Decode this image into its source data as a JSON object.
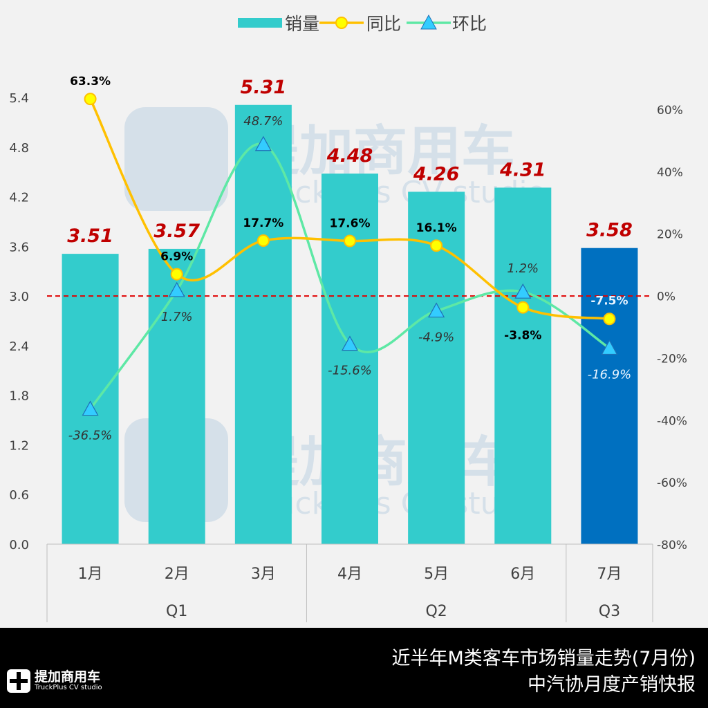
{
  "chart_data": {
    "type": "bar+line",
    "categories": [
      "1月",
      "2月",
      "3月",
      "4月",
      "5月",
      "6月",
      "7月"
    ],
    "groups": [
      {
        "label": "Q1",
        "span": 3
      },
      {
        "label": "Q2",
        "span": 3
      },
      {
        "label": "Q3",
        "span": 1
      }
    ],
    "series": [
      {
        "name": "销量",
        "type": "bar",
        "axis": "left",
        "values": [
          3.51,
          3.57,
          5.31,
          4.48,
          4.26,
          4.31,
          3.58
        ],
        "labels": [
          "3.51",
          "3.57",
          "5.31",
          "4.48",
          "4.26",
          "4.31",
          "3.58"
        ]
      },
      {
        "name": "同比",
        "type": "line",
        "axis": "right",
        "values": [
          63.3,
          6.9,
          17.7,
          17.6,
          16.1,
          -3.8,
          -7.5
        ],
        "labels": [
          "63.3%",
          "6.9%",
          "17.7%",
          "17.6%",
          "16.1%",
          "-3.8%",
          "-7.5%"
        ]
      },
      {
        "name": "环比",
        "type": "line",
        "axis": "right",
        "values": [
          -36.5,
          1.7,
          48.7,
          -15.6,
          -4.9,
          1.2,
          -16.9
        ],
        "labels": [
          "-36.5%",
          "1.7%",
          "48.7%",
          "-15.6%",
          "-4.9%",
          "1.2%",
          "-16.9%"
        ]
      }
    ],
    "left_axis": {
      "ylim": [
        0,
        5.4
      ],
      "ticks": [
        "0.0",
        "0.6",
        "1.2",
        "1.8",
        "2.4",
        "3.0",
        "3.6",
        "4.2",
        "4.8",
        "5.4"
      ]
    },
    "right_axis": {
      "ylim": [
        -80,
        60
      ],
      "ticks": [
        "-80%",
        "-60%",
        "-40%",
        "-20%",
        "0%",
        "20%",
        "40%",
        "60%"
      ]
    },
    "reference_line": {
      "value": 3.0,
      "style": "dashed",
      "color": "#e00000"
    },
    "legend": {
      "placement": "top",
      "entries": [
        "销量",
        "同比",
        "环比"
      ]
    },
    "colors": {
      "bar": "#33CCCC",
      "bar_highlight": "#0070C0",
      "yoy": "#FFC000",
      "yoy_marker": "#FFFF00",
      "mom": "#5EE8A5",
      "mom_marker": "#33CCFF",
      "bar_label": "#C00000"
    },
    "watermark": "提加商用车 TruckPlus CV studio"
  },
  "footer": {
    "title": "近半年M类客车市场销量走势(7月份)",
    "subtitle": "中汽协月度产销快报",
    "logo_cn": "提加商用车",
    "logo_en": "TruckPlus CV studio"
  }
}
